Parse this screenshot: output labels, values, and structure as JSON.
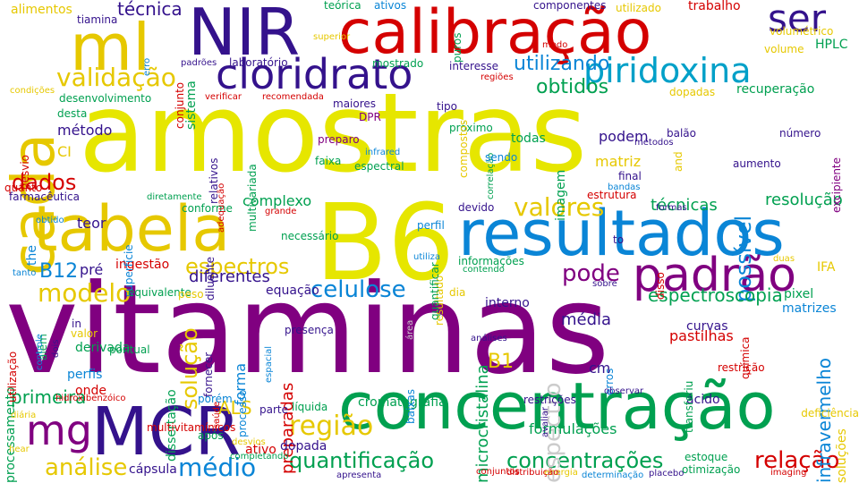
{
  "words": [
    {
      "text": "amostras",
      "color": "#e6e600"
    },
    {
      "text": "vitaminas",
      "color": "#800080"
    },
    {
      "text": "B6",
      "color": "#e6e600"
    },
    {
      "text": "calibração",
      "color": "#d40000"
    },
    {
      "text": "concentração",
      "color": "#00a050"
    },
    {
      "text": "resultados",
      "color": "#0a85d6"
    },
    {
      "text": "tabela",
      "color": "#e6c800"
    },
    {
      "text": "NIR",
      "color": "#34128c"
    },
    {
      "text": "MCR",
      "color": "#34128c"
    },
    {
      "text": "cada",
      "color": "#e6c800"
    },
    {
      "text": "ml",
      "color": "#e6c800"
    },
    {
      "text": "padrão",
      "color": "#800080"
    },
    {
      "text": "cloridrato",
      "color": "#34128c"
    },
    {
      "text": "ser",
      "color": "#34128c"
    },
    {
      "text": "piridoxina",
      "color": "#00a0c8"
    },
    {
      "text": "mg",
      "color": "#800080"
    },
    {
      "text": "quantificação",
      "color": "#00a050"
    },
    {
      "text": "concentrações",
      "color": "#00a050"
    },
    {
      "text": "região",
      "color": "#e6c800"
    },
    {
      "text": "médio",
      "color": "#0a85d6"
    },
    {
      "text": "relação",
      "color": "#d40000"
    },
    {
      "text": "análise",
      "color": "#e6c800"
    },
    {
      "text": "valores",
      "color": "#e6c800"
    },
    {
      "text": "espectros",
      "color": "#e6c800"
    },
    {
      "text": "celulose",
      "color": "#0a85d6"
    },
    {
      "text": "modelo",
      "color": "#e6c800"
    },
    {
      "text": "diferentes",
      "color": "#34128c"
    },
    {
      "text": "validação",
      "color": "#e6c800"
    },
    {
      "text": "obtidos",
      "color": "#00a050"
    },
    {
      "text": "utilizando",
      "color": "#0a85d6"
    },
    {
      "text": "dados",
      "color": "#d40000"
    },
    {
      "text": "espectro",
      "color": "#cccccc"
    },
    {
      "text": "possível",
      "color": "#0a85d6"
    },
    {
      "text": "solução",
      "color": "#e6c800"
    },
    {
      "text": "pode",
      "color": "#800080"
    },
    {
      "text": "B1",
      "color": "#e6c800"
    },
    {
      "text": "ALS",
      "color": "#e6c800"
    },
    {
      "text": "B12",
      "color": "#0a85d6"
    },
    {
      "text": "espectroscopia",
      "color": "#00a050"
    },
    {
      "text": "primeira",
      "color": "#00a050"
    },
    {
      "text": "técnica",
      "color": "#34128c"
    },
    {
      "text": "complexo",
      "color": "#00a050"
    },
    {
      "text": "resolução",
      "color": "#00a050"
    },
    {
      "text": "técnicas",
      "color": "#00a050"
    },
    {
      "text": "microcristalina",
      "color": "#00a050"
    },
    {
      "text": "forma",
      "color": "#0a85d6"
    },
    {
      "text": "preparadas",
      "color": "#d40000"
    },
    {
      "text": "cromatografia",
      "color": "#00a050"
    },
    {
      "text": "matriz",
      "color": "#e6c800"
    },
    {
      "text": "interno",
      "color": "#34128c"
    },
    {
      "text": "HPLC",
      "color": "#00a050"
    },
    {
      "text": "recuperação",
      "color": "#00a050"
    },
    {
      "text": "infravermelho",
      "color": "#0a85d6"
    },
    {
      "text": "média",
      "color": "#34128c"
    },
    {
      "text": "método",
      "color": "#34128c"
    },
    {
      "text": "podem",
      "color": "#34128c"
    },
    {
      "text": "pastilhas",
      "color": "#d40000"
    },
    {
      "text": "formulações",
      "color": "#00a050"
    },
    {
      "text": "teor",
      "color": "#34128c"
    },
    {
      "text": "processamento",
      "color": "#00a050"
    },
    {
      "text": "equação",
      "color": "#34128c"
    },
    {
      "text": "IFA",
      "color": "#e6c800"
    },
    {
      "text": "imagem",
      "color": "#00a050"
    },
    {
      "text": "sistema",
      "color": "#00a050"
    },
    {
      "text": "pré",
      "color": "#34128c"
    },
    {
      "text": "ingestão",
      "color": "#d40000"
    },
    {
      "text": "todas",
      "color": "#00a050"
    },
    {
      "text": "curvas",
      "color": "#34128c"
    },
    {
      "text": "restrições",
      "color": "#34128c"
    },
    {
      "text": "ácido",
      "color": "#34128c"
    },
    {
      "text": "líquida",
      "color": "#00a050"
    },
    {
      "text": "dissertação",
      "color": "#00a050"
    },
    {
      "text": "processo",
      "color": "#0a85d6"
    },
    {
      "text": "ativo",
      "color": "#d40000"
    },
    {
      "text": "dopada",
      "color": "#34128c"
    },
    {
      "text": "cápsula",
      "color": "#34128c"
    },
    {
      "text": "pixel",
      "color": "#00a050"
    },
    {
      "text": "matrizes",
      "color": "#0a85d6"
    },
    {
      "text": "aumento",
      "color": "#34128c"
    },
    {
      "text": "onde",
      "color": "#d40000"
    },
    {
      "text": "estrutura",
      "color": "#d40000"
    },
    {
      "text": "componentes",
      "color": "#34128c"
    },
    {
      "text": "utilizado",
      "color": "#e6c800"
    },
    {
      "text": "trabalho",
      "color": "#d40000"
    },
    {
      "text": "presença",
      "color": "#34128c"
    },
    {
      "text": "derivada",
      "color": "#00a050"
    },
    {
      "text": "conforme",
      "color": "#00a050"
    },
    {
      "text": "superfície",
      "color": "#0a85d6"
    },
    {
      "text": "parte",
      "color": "#34128c"
    },
    {
      "text": "após",
      "color": "#00a050"
    },
    {
      "text": "erros",
      "color": "#0a85d6"
    },
    {
      "text": "restrição",
      "color": "#d40000"
    },
    {
      "text": "resultado",
      "color": "#e6c800"
    },
    {
      "text": "CI",
      "color": "#e6c800"
    },
    {
      "text": "in",
      "color": "#34128c"
    },
    {
      "text": "alimentos",
      "color": "#e6c800"
    },
    {
      "text": "cm",
      "color": "#34128c"
    },
    {
      "text": "dopadas",
      "color": "#e6c800"
    },
    {
      "text": "balão",
      "color": "#34128c"
    },
    {
      "text": "the",
      "color": "#0a85d6"
    },
    {
      "text": "número",
      "color": "#34128c"
    },
    {
      "text": "próximo",
      "color": "#00a050"
    },
    {
      "text": "faixa",
      "color": "#00a050"
    },
    {
      "text": "diluente",
      "color": "#34128c"
    },
    {
      "text": "tipo",
      "color": "#34128c"
    },
    {
      "text": "maiores",
      "color": "#34128c"
    },
    {
      "text": "laboratório",
      "color": "#34128c"
    },
    {
      "text": "mostrado",
      "color": "#00a050"
    },
    {
      "text": "interesse",
      "color": "#34128c"
    },
    {
      "text": "volume",
      "color": "#e6c800"
    },
    {
      "text": "volumétrico",
      "color": "#e6c800"
    },
    {
      "text": "puros",
      "color": "#00a050"
    },
    {
      "text": "teórica",
      "color": "#00a050"
    },
    {
      "text": "ativos",
      "color": "#0a85d6"
    },
    {
      "text": "tiamina",
      "color": "#34128c"
    },
    {
      "text": "conjunto",
      "color": "#d40000"
    },
    {
      "text": "desenvolvimento",
      "color": "#00a050"
    },
    {
      "text": "desta",
      "color": "#00a050"
    },
    {
      "text": "verificar",
      "color": "#d40000"
    },
    {
      "text": "recomendada",
      "color": "#d40000"
    },
    {
      "text": "DPR",
      "color": "#800080"
    },
    {
      "text": "preparo",
      "color": "#800080"
    },
    {
      "text": "correlação",
      "color": "#00a050"
    },
    {
      "text": "compostos",
      "color": "#e6c800"
    },
    {
      "text": "sendo",
      "color": "#0a85d6"
    },
    {
      "text": "espectral",
      "color": "#00a050"
    },
    {
      "text": "devido",
      "color": "#34128c"
    },
    {
      "text": "perfil",
      "color": "#0a85d6"
    },
    {
      "text": "quantificar",
      "color": "#00a050"
    },
    {
      "text": "informações",
      "color": "#00a050"
    },
    {
      "text": "contendo",
      "color": "#00a050"
    },
    {
      "text": "dia",
      "color": "#e6c800"
    },
    {
      "text": "to",
      "color": "#34128c"
    },
    {
      "text": "disso",
      "color": "#d40000"
    },
    {
      "text": "sobre",
      "color": "#34128c"
    },
    {
      "text": "final",
      "color": "#34128c"
    },
    {
      "text": "and",
      "color": "#e6c800"
    },
    {
      "text": "métodos",
      "color": "#34128c"
    },
    {
      "text": "bandas",
      "color": "#0a85d6"
    },
    {
      "text": "formas",
      "color": "#34128c"
    },
    {
      "text": "duas",
      "color": "#e6c800"
    },
    {
      "text": "transferiu",
      "color": "#00a050"
    },
    {
      "text": "química",
      "color": "#d40000"
    },
    {
      "text": "soluções",
      "color": "#e6c800"
    },
    {
      "text": "excipiente",
      "color": "#800080"
    },
    {
      "text": "deficiência",
      "color": "#e6c800"
    },
    {
      "text": "imaging",
      "color": "#d40000"
    },
    {
      "text": "otimização",
      "color": "#00a050"
    },
    {
      "text": "estoque",
      "color": "#00a050"
    },
    {
      "text": "observar",
      "color": "#34128c"
    },
    {
      "text": "avaliar",
      "color": "#34128c"
    },
    {
      "text": "determinação",
      "color": "#0a85d6"
    },
    {
      "text": "placebo",
      "color": "#34128c"
    },
    {
      "text": "energia",
      "color": "#e6c800"
    },
    {
      "text": "distribuição",
      "color": "#d40000"
    },
    {
      "text": "conjuntos",
      "color": "#d40000"
    },
    {
      "text": "apresenta",
      "color": "#34128c"
    },
    {
      "text": "análises",
      "color": "#34128c"
    },
    {
      "text": "baixas",
      "color": "#0a85d6"
    },
    {
      "text": "área",
      "color": "#cccccc"
    },
    {
      "text": "completando",
      "color": "#00a050"
    },
    {
      "text": "desvios",
      "color": "#e6c800"
    },
    {
      "text": "hear",
      "color": "#e6c800"
    },
    {
      "text": "diária",
      "color": "#e6c800"
    },
    {
      "text": "hidroxibenzóico",
      "color": "#d40000"
    },
    {
      "text": "multivitamínicos",
      "color": "#d40000"
    },
    {
      "text": "porém",
      "color": "#0a85d6"
    },
    {
      "text": "saúde",
      "color": "#d40000"
    },
    {
      "text": "fornecer",
      "color": "#34128c"
    },
    {
      "text": "espacial",
      "color": "#0a85d6"
    },
    {
      "text": "perfis",
      "color": "#0a85d6"
    },
    {
      "text": "pontual",
      "color": "#00a050"
    },
    {
      "text": "valor",
      "color": "#e6c800"
    },
    {
      "text": "além",
      "color": "#00a050"
    },
    {
      "text": "dois",
      "color": "#34128c"
    },
    {
      "text": "controle",
      "color": "#0a85d6"
    },
    {
      "text": "utilização",
      "color": "#d40000"
    },
    {
      "text": "equivalente",
      "color": "#00a050"
    },
    {
      "text": "peso",
      "color": "#e6c800"
    },
    {
      "text": "tanto",
      "color": "#0a85d6"
    },
    {
      "text": "necessário",
      "color": "#00a050"
    },
    {
      "text": "grande",
      "color": "#d40000"
    },
    {
      "text": "obtido",
      "color": "#0a85d6"
    },
    {
      "text": "farmacêutica",
      "color": "#34128c"
    },
    {
      "text": "quanto",
      "color": "#d40000"
    },
    {
      "text": "desvio",
      "color": "#d40000"
    },
    {
      "text": "condições",
      "color": "#e6c800"
    },
    {
      "text": "relativos",
      "color": "#34128c"
    },
    {
      "text": "multivariada",
      "color": "#00a050"
    },
    {
      "text": "diretamente",
      "color": "#00a050"
    },
    {
      "text": "adequação",
      "color": "#d40000"
    },
    {
      "text": "infrared",
      "color": "#0a85d6"
    },
    {
      "text": "regiões",
      "color": "#d40000"
    },
    {
      "text": "superior",
      "color": "#e6c800"
    },
    {
      "text": "modo",
      "color": "#d40000"
    },
    {
      "text": "erro",
      "color": "#0a85d6"
    },
    {
      "text": "utiliza",
      "color": "#0a85d6"
    },
    {
      "text": "padrões",
      "color": "#34128c"
    },
    {
      "text": "modelos",
      "color": "#34128c"
    }
  ]
}
